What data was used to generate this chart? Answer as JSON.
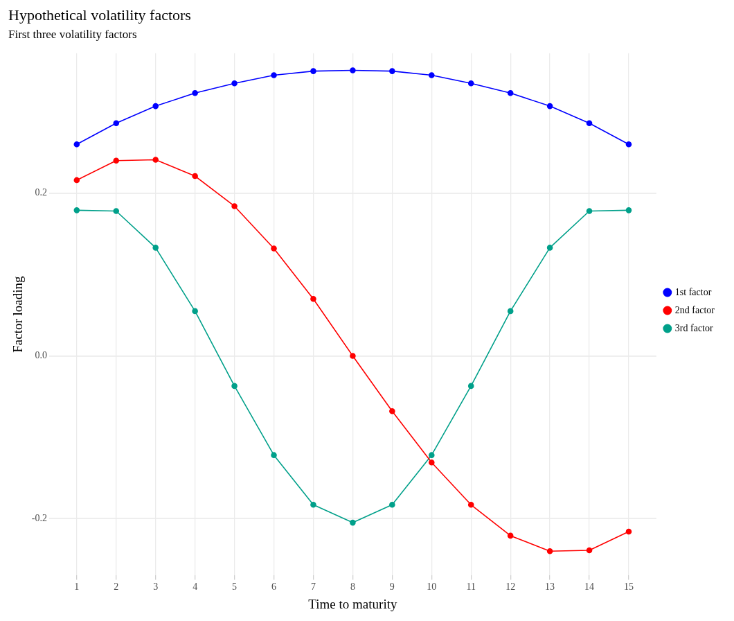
{
  "chart_data": {
    "type": "line",
    "title": "Hypothetical volatility factors",
    "subtitle": "First three volatility factors",
    "xlabel": "Time to maturity",
    "ylabel": "Factor loading",
    "x": [
      1,
      2,
      3,
      4,
      5,
      6,
      7,
      8,
      9,
      10,
      11,
      12,
      13,
      14,
      15
    ],
    "series": [
      {
        "name": "1st factor",
        "color": "#0000ff",
        "values": [
          0.26,
          0.286,
          0.307,
          0.323,
          0.335,
          0.345,
          0.35,
          0.351,
          0.35,
          0.345,
          0.335,
          0.323,
          0.307,
          0.286,
          0.26
        ]
      },
      {
        "name": "2nd factor",
        "color": "#ff0000",
        "values": [
          0.216,
          0.24,
          0.241,
          0.221,
          0.184,
          0.132,
          0.07,
          0,
          -0.068,
          -0.131,
          -0.183,
          -0.221,
          -0.24,
          -0.239,
          -0.216
        ]
      },
      {
        "name": "3rd factor",
        "color": "#00a08a",
        "values": [
          0.179,
          0.178,
          0.133,
          0.055,
          -0.037,
          -0.122,
          -0.183,
          -0.205,
          -0.183,
          -0.122,
          -0.037,
          0.055,
          0.133,
          0.178,
          0.179
        ]
      }
    ],
    "xlim": [
      0.3,
      15.7
    ],
    "xticks": [
      1,
      2,
      3,
      4,
      5,
      6,
      7,
      8,
      9,
      10,
      11,
      12,
      13,
      14,
      15
    ],
    "ylim": [
      -0.27,
      0.372
    ],
    "yticks": [
      {
        "value": -0.2,
        "label": "-0.2"
      },
      {
        "value": 0,
        "label": "0.0"
      },
      {
        "value": 0.2,
        "label": "0.2"
      }
    ],
    "grid": true,
    "legend": "right",
    "marker": "circle",
    "line_style": "solid"
  }
}
